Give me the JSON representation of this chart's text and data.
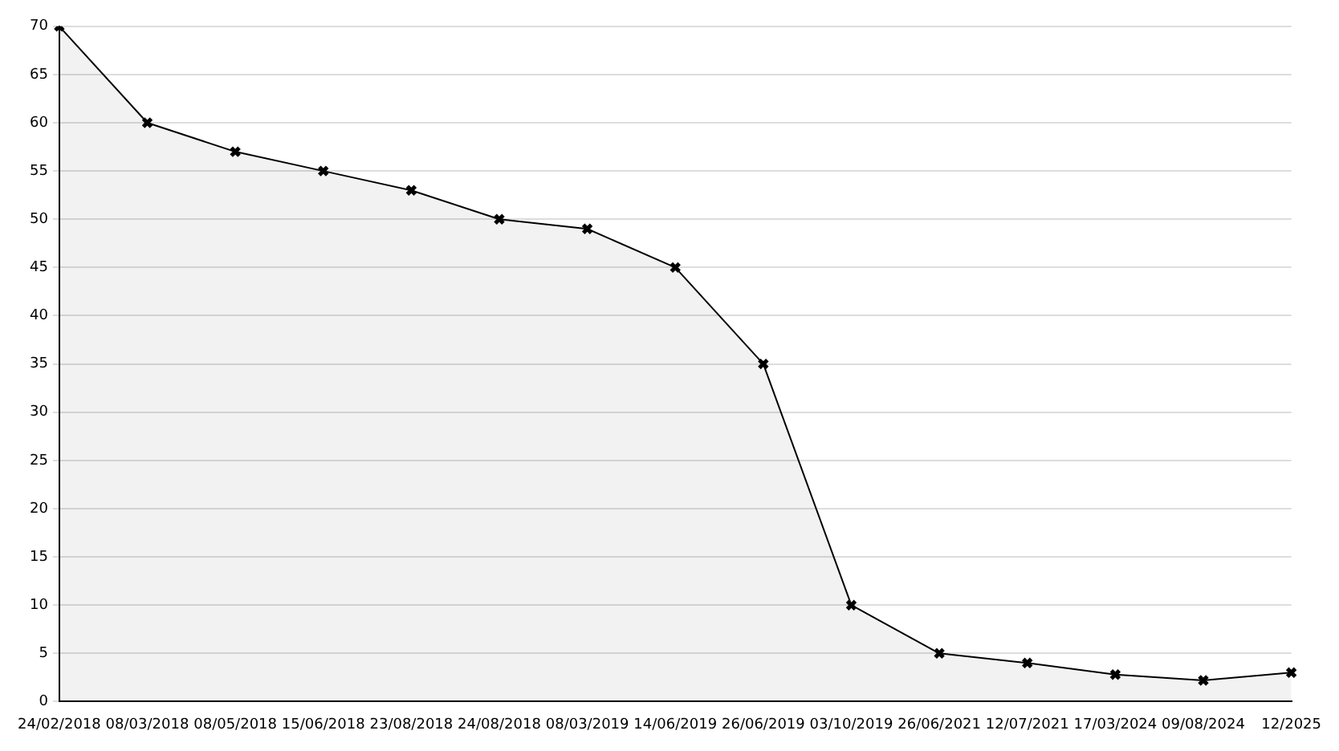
{
  "chart_data": {
    "type": "area",
    "categories": [
      "24/02/2018",
      "08/03/2018",
      "08/05/2018",
      "15/06/2018",
      "23/08/2018",
      "24/08/2018",
      "08/03/2019",
      "14/06/2019",
      "26/06/2019",
      "03/10/2019",
      "26/06/2021",
      "12/07/2021",
      "17/03/2024",
      "09/08/2024",
      "12/2025"
    ],
    "series": [
      {
        "color": "#000000",
        "values": [
          70,
          60,
          57,
          55,
          53,
          50,
          49,
          45,
          35,
          10,
          5,
          4,
          2.8,
          2.2,
          3
        ]
      }
    ],
    "ylim": [
      0,
      70
    ],
    "yticks": [
      0,
      5,
      10,
      15,
      20,
      25,
      30,
      35,
      40,
      45,
      50,
      55,
      60,
      65,
      70
    ],
    "grid": "y",
    "legend": false,
    "marker": "cross"
  }
}
